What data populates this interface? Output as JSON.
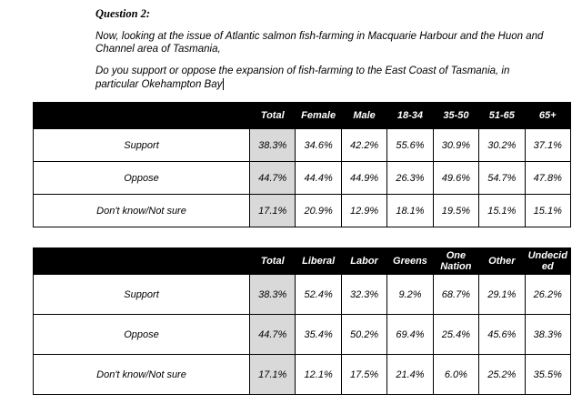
{
  "document": {
    "question_label": "Question 2:",
    "paragraph1": "Now, looking at the issue of Atlantic salmon fish-farming in Macquarie Harbour and the Huon and Channel area of Tasmania,",
    "paragraph2": "Do you support or oppose the expansion of fish-farming to the East Coast of Tasmania, in particular Okehampton Bay"
  },
  "colors": {
    "header_bg": "#000000",
    "header_text": "#ffffff",
    "total_column_bg": "#d9d9d9"
  },
  "tables": [
    {
      "name": "by-demographics",
      "headers": [
        "",
        "Total",
        "Female",
        "Male",
        "18-34",
        "35-50",
        "51-65",
        "65+"
      ],
      "rows": [
        {
          "label": "Support",
          "values": [
            "38.3%",
            "34.6%",
            "42.2%",
            "55.6%",
            "30.9%",
            "30.2%",
            "37.1%"
          ]
        },
        {
          "label": "Oppose",
          "values": [
            "44.7%",
            "44.4%",
            "44.9%",
            "26.3%",
            "49.6%",
            "54.7%",
            "47.8%"
          ]
        },
        {
          "label": "Don't know/Not sure",
          "values": [
            "17.1%",
            "20.9%",
            "12.9%",
            "18.1%",
            "19.5%",
            "15.1%",
            "15.1%"
          ]
        }
      ]
    },
    {
      "name": "by-voting-intention",
      "headers": [
        "",
        "Total",
        "Liberal",
        "Labor",
        "Greens",
        "One Nation",
        "Other",
        "Undecided"
      ],
      "rows": [
        {
          "label": "Support",
          "values": [
            "38.3%",
            "52.4%",
            "32.3%",
            "9.2%",
            "68.7%",
            "29.1%",
            "26.2%"
          ]
        },
        {
          "label": "Oppose",
          "values": [
            "44.7%",
            "35.4%",
            "50.2%",
            "69.4%",
            "25.4%",
            "45.6%",
            "38.3%"
          ]
        },
        {
          "label": "Don't know/Not sure",
          "values": [
            "17.1%",
            "12.1%",
            "17.5%",
            "21.4%",
            "6.0%",
            "25.2%",
            "35.5%"
          ]
        }
      ]
    }
  ]
}
